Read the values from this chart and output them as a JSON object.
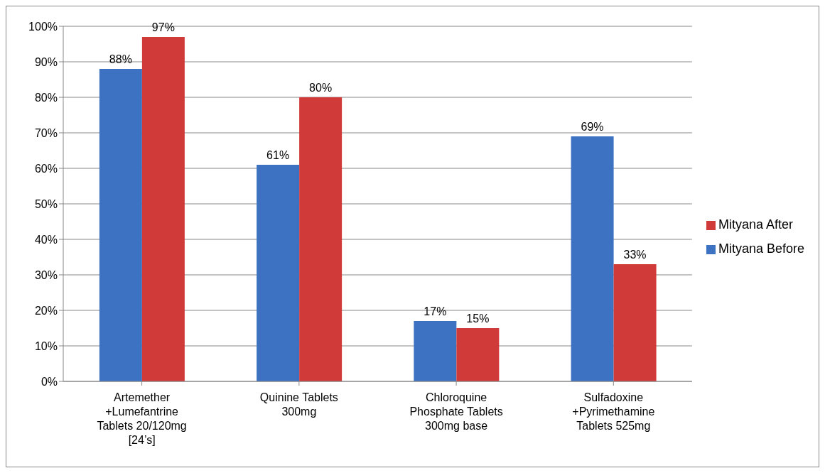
{
  "chart_data": {
    "type": "bar",
    "categories": [
      "Artemether +Lumefantrine Tablets 20/120mg [24’s]",
      "Quinine Tablets 300mg",
      "Chloroquine Phosphate Tablets 300mg base",
      "Sulfadoxine +Pyrimethamine Tablets 525mg"
    ],
    "series": [
      {
        "name": "Mityana Before",
        "color": "#3d72c2",
        "values": [
          88,
          61,
          17,
          69
        ],
        "value_labels": [
          "88%",
          "61%",
          "17%",
          "69%"
        ]
      },
      {
        "name": "Mityana After",
        "color": "#d03a38",
        "values": [
          97,
          80,
          15,
          33
        ],
        "value_labels": [
          "97%",
          "80%",
          "15%",
          "33%"
        ]
      }
    ],
    "ylim": [
      0,
      100
    ],
    "yticks": [
      {
        "value": 0,
        "label": "0%"
      },
      {
        "value": 10,
        "label": "10%"
      },
      {
        "value": 20,
        "label": "20%"
      },
      {
        "value": 30,
        "label": "30%"
      },
      {
        "value": 40,
        "label": "40%"
      },
      {
        "value": 50,
        "label": "50%"
      },
      {
        "value": 60,
        "label": "60%"
      },
      {
        "value": 70,
        "label": "70%"
      },
      {
        "value": 80,
        "label": "80%"
      },
      {
        "value": 90,
        "label": "90%"
      },
      {
        "value": 100,
        "label": "100%"
      }
    ],
    "grid": "y",
    "legend": "right"
  }
}
